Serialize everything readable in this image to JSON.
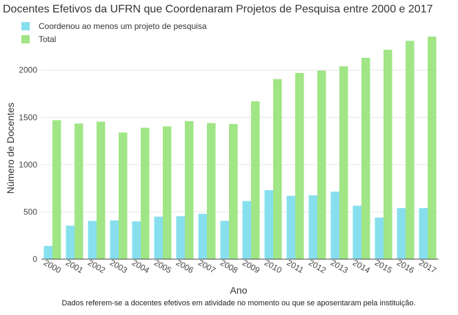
{
  "chart_data": {
    "type": "bar",
    "title": "Docentes Efetivos da UFRN que Coordenaram Projetos de Pesquisa entre 2000 e 2017",
    "xlabel": "Ano",
    "ylabel": "Número de Docentes",
    "note": "Dados referem-se a docentes efetivos em atividade no momento ou que se aposentaram pela instituição.",
    "categories": [
      "2000",
      "2001",
      "2002",
      "2003",
      "2004",
      "2005",
      "2006",
      "2007",
      "2008",
      "2009",
      "2010",
      "2011",
      "2012",
      "2013",
      "2014",
      "2015",
      "2016",
      "2017"
    ],
    "series": [
      {
        "name": "Coordenou ao menos um projeto de pesquisa",
        "color": "#87dfee",
        "values": [
          140,
          355,
          405,
          410,
          400,
          450,
          455,
          480,
          405,
          615,
          730,
          670,
          675,
          715,
          565,
          440,
          540,
          540
        ]
      },
      {
        "name": "Total",
        "color": "#a0e586",
        "values": [
          1470,
          1435,
          1455,
          1340,
          1390,
          1405,
          1460,
          1440,
          1430,
          1670,
          1905,
          1970,
          1995,
          2040,
          2130,
          2215,
          2310,
          2355
        ]
      }
    ],
    "ylim": [
      0,
      2450
    ],
    "yticks": [
      0,
      500,
      1000,
      1500,
      2000
    ],
    "grid": true,
    "legend": "top-left"
  }
}
